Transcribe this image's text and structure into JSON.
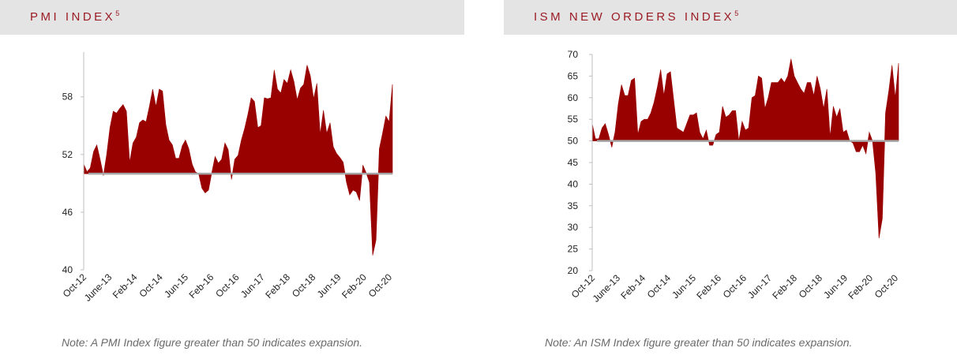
{
  "chart_data": [
    {
      "id": "pmi",
      "type": "area",
      "title": "PMI INDEX",
      "title_superscript": "5",
      "note": "Note: A PMI Index figure greater than 50 indicates expansion.",
      "baseline": 50,
      "ylim": [
        40,
        62
      ],
      "yticks": [
        40,
        46,
        52,
        58
      ],
      "xlabels": [
        "Oct-12",
        "June-13",
        "Feb-14",
        "Oct-14",
        "Jun-15",
        "Feb-16",
        "Oct-16",
        "Jun-17",
        "Feb-18",
        "Oct-18",
        "Jun-19",
        "Feb-20",
        "Oct-20"
      ],
      "color": "#990000",
      "values": [
        51.0,
        50.2,
        50.6,
        52.3,
        53.0,
        51.5,
        49.8,
        52.0,
        54.8,
        56.5,
        56.3,
        56.8,
        57.2,
        56.5,
        51.2,
        53.2,
        53.8,
        55.3,
        55.6,
        55.4,
        57.0,
        58.8,
        57.0,
        58.8,
        58.6,
        55.1,
        53.5,
        53.0,
        51.6,
        51.6,
        52.9,
        53.5,
        52.6,
        51.0,
        50.2,
        50.0,
        48.5,
        48.0,
        48.3,
        50.1,
        51.8,
        51.1,
        51.5,
        53.2,
        52.5,
        49.4,
        51.5,
        51.9,
        53.5,
        54.7,
        56.2,
        57.9,
        57.5,
        54.8,
        55.0,
        57.9,
        57.8,
        57.9,
        60.8,
        58.8,
        58.4,
        59.8,
        59.4,
        60.8,
        59.6,
        57.7,
        58.9,
        59.3,
        61.3,
        60.2,
        57.8,
        59.4,
        54.1,
        56.6,
        54.2,
        55.3,
        52.8,
        52.1,
        51.7,
        51.2,
        49.1,
        47.8,
        48.3,
        48.1,
        47.2,
        50.9,
        50.1,
        49.1,
        41.5,
        43.1,
        52.6,
        54.2,
        56.0,
        55.4,
        59.3
      ]
    },
    {
      "id": "ism",
      "type": "area",
      "title": "ISM NEW ORDERS INDEX",
      "title_superscript": "5",
      "note": "Note: An ISM Index figure greater than 50 indicates expansion.",
      "baseline": 50,
      "ylim": [
        20,
        70
      ],
      "yticks": [
        20,
        25,
        30,
        35,
        40,
        45,
        50,
        55,
        60,
        65,
        70
      ],
      "xlabels": [
        "Oct-12",
        "June-13",
        "Feb-14",
        "Oct-14",
        "Jun-15",
        "Feb-16",
        "Oct-16",
        "Jun-17",
        "Feb-18",
        "Oct-18",
        "Jun-19",
        "Feb-20",
        "Oct-20"
      ],
      "color": "#990000",
      "values": [
        54.0,
        50.5,
        50.5,
        53.0,
        54.0,
        51.5,
        48.5,
        52.0,
        58.5,
        63.0,
        60.5,
        60.5,
        64.0,
        64.5,
        51.5,
        54.5,
        55.0,
        55.0,
        56.5,
        59.0,
        62.5,
        66.5,
        60.5,
        65.5,
        66.0,
        59.5,
        53.0,
        52.5,
        52.0,
        54.0,
        56.0,
        56.0,
        56.5,
        52.0,
        50.5,
        52.5,
        49.0,
        49.0,
        51.5,
        52.0,
        58.0,
        55.5,
        56.0,
        57.0,
        57.0,
        50.0,
        54.5,
        52.5,
        53.0,
        60.0,
        60.5,
        65.0,
        64.5,
        57.5,
        60.0,
        63.5,
        63.5,
        63.5,
        64.5,
        63.5,
        65.0,
        69.0,
        65.0,
        63.5,
        62.0,
        61.0,
        63.5,
        63.5,
        60.5,
        65.0,
        62.0,
        57.5,
        62.0,
        51.0,
        58.0,
        55.5,
        57.5,
        52.0,
        52.5,
        50.0,
        49.5,
        47.5,
        47.5,
        49.0,
        47.0,
        52.0,
        50.0,
        42.5,
        27.5,
        32.0,
        56.5,
        61.5,
        67.5,
        60.0,
        68.0
      ]
    }
  ]
}
